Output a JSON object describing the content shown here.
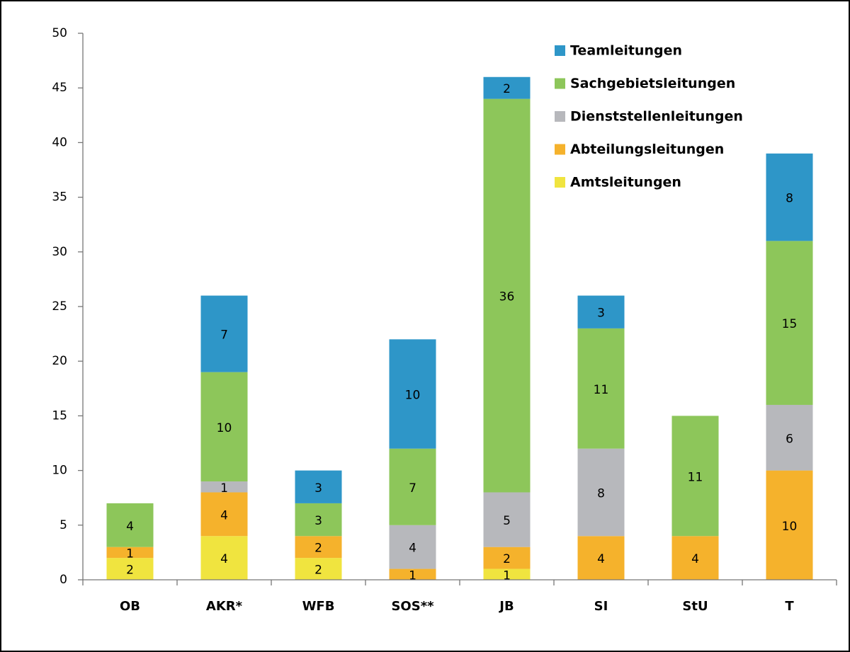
{
  "chart_data": {
    "type": "stacked_bar",
    "categories": [
      "OB",
      "AKR*",
      "WFB",
      "SOS**",
      "JB",
      "SI",
      "StU",
      "T"
    ],
    "series": [
      {
        "name": "Amtsleitungen",
        "color": "#f0e43f",
        "values": [
          2,
          4,
          2,
          null,
          1,
          null,
          null,
          null
        ]
      },
      {
        "name": "Abteilungsleitungen",
        "color": "#f5b22c",
        "values": [
          1,
          4,
          2,
          1,
          2,
          4,
          4,
          10
        ]
      },
      {
        "name": "Dienststellenleitungen",
        "color": "#b7b8bc",
        "values": [
          null,
          1,
          null,
          4,
          5,
          8,
          null,
          6
        ]
      },
      {
        "name": "Sachgebietsleitungen",
        "color": "#8dc65a",
        "values": [
          4,
          10,
          3,
          7,
          36,
          11,
          11,
          15
        ]
      },
      {
        "name": "Teamleitungen",
        "color": "#2e96c8",
        "values": [
          null,
          7,
          3,
          10,
          2,
          3,
          null,
          8
        ]
      }
    ],
    "ylim": [
      0,
      50
    ],
    "yticks": [
      0,
      5,
      10,
      15,
      20,
      25,
      30,
      35,
      40,
      45,
      50
    ],
    "legend": "top-right"
  }
}
